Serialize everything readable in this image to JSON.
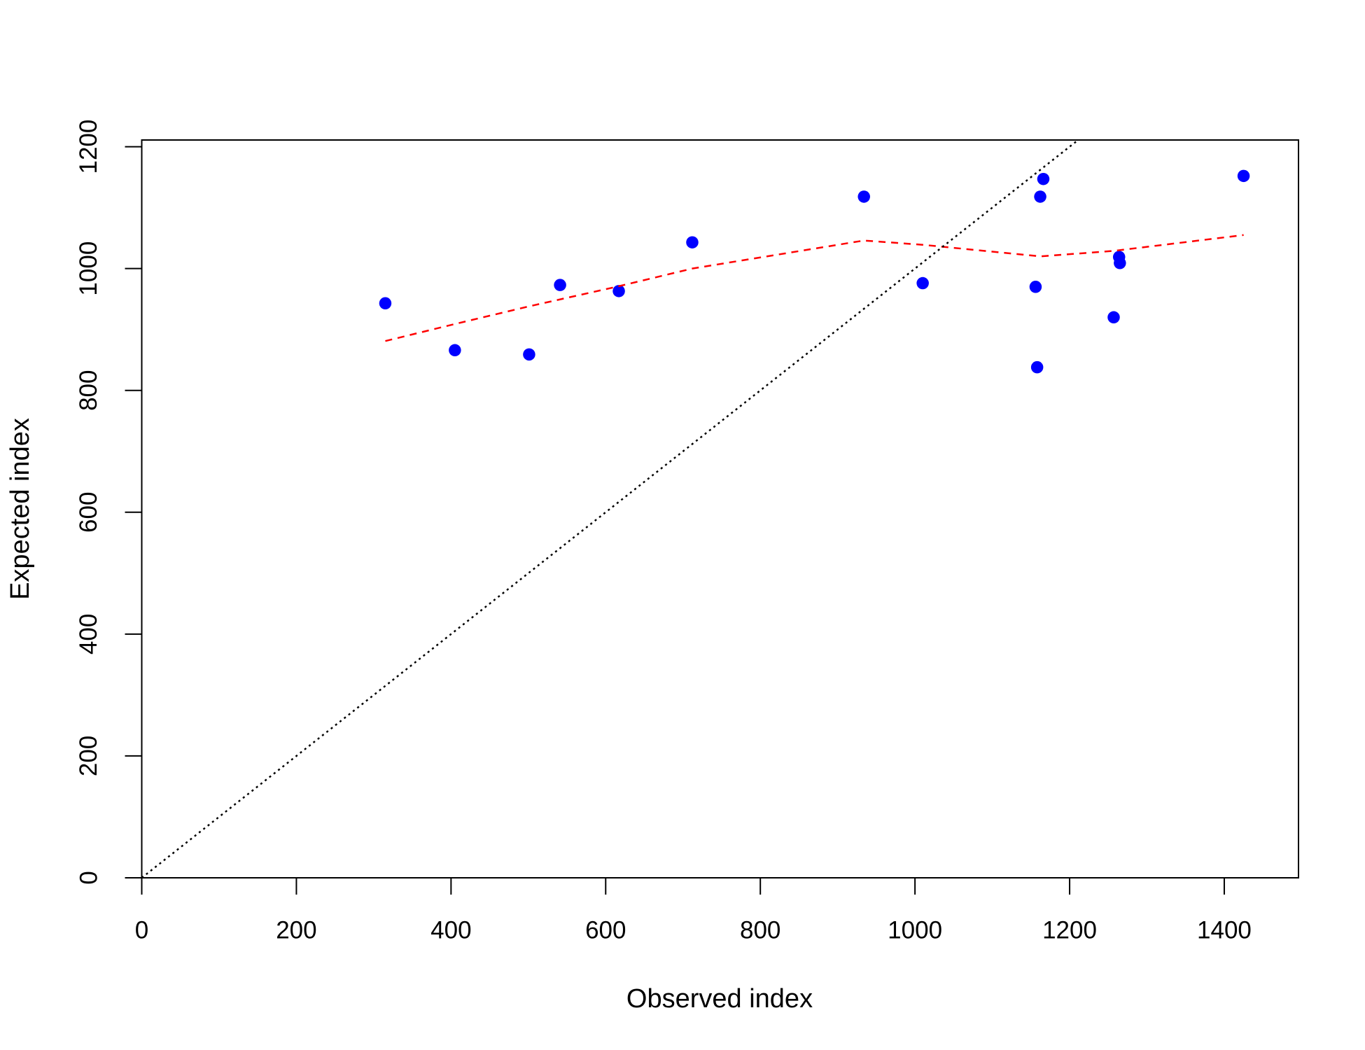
{
  "chart_data": {
    "type": "scatter",
    "x_label": "Observed index",
    "y_label": "Expected index",
    "xlim": [
      0,
      1496
    ],
    "ylim": [
      0,
      1211
    ],
    "xticks": [
      0,
      200,
      400,
      600,
      800,
      1000,
      1200,
      1400
    ],
    "yticks": [
      0,
      200,
      400,
      600,
      800,
      1000,
      1200
    ],
    "series": [
      {
        "mode": "points",
        "color": "#0000ff",
        "x": [
          315,
          405,
          501,
          541,
          617,
          712,
          934,
          1010,
          1156,
          1158,
          1162,
          1166,
          1257,
          1264,
          1265,
          1425
        ],
        "values": [
          943,
          866,
          859,
          973,
          963,
          1043,
          1118,
          976,
          970,
          838,
          1118,
          1147,
          920,
          1019,
          1009,
          1152
        ]
      },
      {
        "mode": "line",
        "color": "#ff0000",
        "dash": "dashed",
        "x": [
          315,
          405,
          501,
          617,
          712,
          934,
          1010,
          1162,
          1257,
          1425
        ],
        "values": [
          881,
          909,
          938,
          971,
          1000,
          1046,
          1039,
          1020,
          1029,
          1055
        ]
      },
      {
        "mode": "line",
        "color": "#000000",
        "dash": "dotted",
        "x": [
          0,
          1211
        ],
        "values": [
          0,
          1211
        ]
      }
    ]
  }
}
